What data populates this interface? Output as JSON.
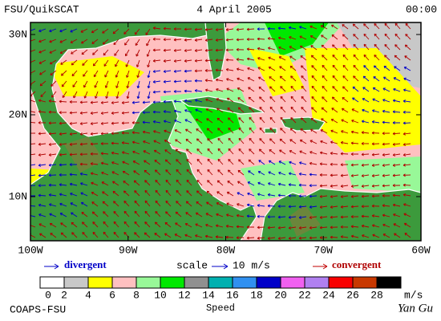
{
  "header": {
    "title": "FSU/QuikSCAT",
    "date": "4 April 2005",
    "time": "00:00"
  },
  "map": {
    "lat_labels": [
      "30N",
      "20N",
      "10N"
    ],
    "lon_labels": [
      "100W",
      "90W",
      "80W",
      "70W",
      "60W"
    ]
  },
  "legend": {
    "divergent": "divergent",
    "scale": "scale",
    "scale_value": "10 m/s",
    "convergent": "convergent"
  },
  "colorbar": {
    "labels": [
      "0",
      "2",
      "4",
      "6",
      "8",
      "10",
      "12",
      "14",
      "16",
      "18",
      "20",
      "22",
      "24",
      "26",
      "28"
    ],
    "unit": "m/s",
    "colors": [
      "#ffffff",
      "#c8c8c8",
      "#ffff00",
      "#ffc0c0",
      "#98f898",
      "#00e800",
      "#909090",
      "#00b0b0",
      "#3090f0",
      "#0000c8",
      "#f060f0",
      "#b080f0",
      "#f80000",
      "#c83800",
      "#000000"
    ]
  },
  "footer": {
    "credit": "COAPS-FSU",
    "caption": "Speed",
    "author": "Yan Gu"
  }
}
